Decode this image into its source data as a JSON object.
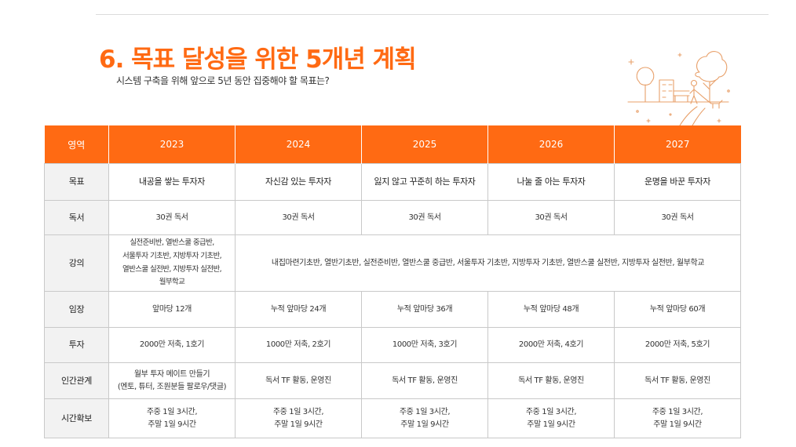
{
  "title": "6. 목표 달성을 위한 5개년 계획",
  "subtitle": "시스템 구축을 위해 앞으로 5년 동안 집중해야 할 목표는?",
  "table": {
    "header": [
      "영역",
      "2023",
      "2024",
      "2025",
      "2026",
      "2027"
    ],
    "goal": {
      "label": "목표",
      "cells": [
        "내공을 쌓는 투자자",
        "자신감 있는 투자자",
        "잃지 않고 꾸준히 하는 투자자",
        "나눌 줄 아는 투자자",
        "운명을 바꾼 투자자"
      ]
    },
    "reading": {
      "label": "독서",
      "cells": [
        "30권 독서",
        "30권 독서",
        "30권 독서",
        "30권 독서",
        "30권 독서"
      ]
    },
    "lecture": {
      "label": "강의",
      "first_lines": [
        "실전준비반, 열반스쿨 중급반,",
        "서울투자 기초반, 지방투자 기초반,",
        "열반스쿨 실전반, 지방투자 실전반,",
        "월부학교"
      ],
      "rest": "내집마련기초반, 열반기초반, 실전준비반, 열반스쿨 중급반, 서울투자 기초반, 지방투자 기초반, 열반스쿨 실전반, 지방투자 실전반, 월부학교"
    },
    "imjang": {
      "label": "임장",
      "cells": [
        "앞마당 12개",
        "누적 앞마당 24개",
        "누적 앞마당 36개",
        "누적 앞마당 48개",
        "누적 앞마당 60개"
      ]
    },
    "investment": {
      "label": "투자",
      "cells": [
        "2000만 저축, 1호기",
        "1000만 저축, 2호기",
        "1000만 저축, 3호기",
        "2000만 저축, 4호기",
        "2000만 저축, 5호기"
      ]
    },
    "relations": {
      "label": "인간관계",
      "first_lines": [
        "월부 투자 메이트 만들기",
        "(멘토, 튜터, 조원분들 팔로우/댓글)"
      ],
      "cells": [
        "독서 TF 활동, 운영진",
        "독서 TF 활동, 운영진",
        "독서 TF 활동, 운영진",
        "독서 TF 활동, 운영진"
      ]
    },
    "time": {
      "label": "시간확보",
      "line1": "주중 1일 3시간,",
      "line2": "주말 1일 9시간"
    }
  },
  "colors": {
    "accent": "#ff6a13",
    "header_text": "#ffffff",
    "label_bg": "#f2f2f2",
    "border": "#c9c9c9"
  },
  "illustration_icon": "park-walk-illustration-icon"
}
